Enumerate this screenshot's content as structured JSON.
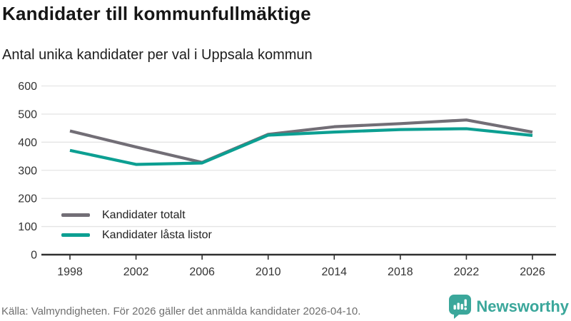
{
  "header": {
    "title": "Kandidater till kommunfullmäktige",
    "subtitle": "Antal unika kandidater per val i Uppsala kommun"
  },
  "chart_data": {
    "type": "line",
    "title": "Kandidater till kommunfullmäktige",
    "subtitle": "Antal unika kandidater per val i Uppsala kommun",
    "categories": [
      "1998",
      "2002",
      "2006",
      "2010",
      "2014",
      "2018",
      "2022",
      "2026"
    ],
    "series": [
      {
        "name": "Kandidater totalt",
        "color": "#726e76",
        "values": [
          440,
          383,
          328,
          428,
          455,
          466,
          479,
          436
        ]
      },
      {
        "name": "Kandidater låsta listor",
        "color": "#0c9f92",
        "values": [
          371,
          321,
          326,
          425,
          436,
          445,
          448,
          424
        ]
      }
    ],
    "xlabel": "",
    "ylabel": "",
    "ylim": [
      0,
      600
    ],
    "yticks": [
      0,
      100,
      200,
      300,
      400,
      500,
      600
    ],
    "grid": "horizontal",
    "legend_position": "inside-bottom-left",
    "colors": {
      "gridline": "#e5e5e5",
      "axis": "#303030",
      "tick_label": "#333333"
    }
  },
  "footer": {
    "source": "Källa: Valmyndigheten. För 2026 gäller det anmälda kandidater 2026-04-10.",
    "brand": "Newsworthy",
    "brand_color": "#3ba79b"
  }
}
